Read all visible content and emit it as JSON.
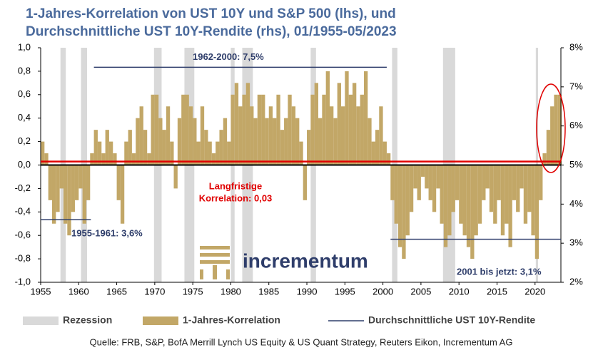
{
  "chart_data": {
    "type": "bar",
    "title": [
      "1-Jahres-Korrelation von UST 10Y und S&P 500 (lhs), und",
      "Durchschnittliche UST 10Y-Rendite (rhs), 01/1955-05/2023"
    ],
    "x": [
      1955,
      1955.5,
      1956,
      1956.5,
      1957,
      1957.5,
      1958,
      1958.5,
      1959,
      1959.5,
      1960,
      1960.5,
      1961,
      1961.5,
      1962,
      1962.5,
      1963,
      1963.5,
      1964,
      1964.5,
      1965,
      1965.5,
      1966,
      1966.5,
      1967,
      1967.5,
      1968,
      1968.5,
      1969,
      1969.5,
      1970,
      1970.5,
      1971,
      1971.5,
      1972,
      1972.5,
      1973,
      1973.5,
      1974,
      1974.5,
      1975,
      1975.5,
      1976,
      1976.5,
      1977,
      1977.5,
      1978,
      1978.5,
      1979,
      1979.5,
      1980,
      1980.5,
      1981,
      1981.5,
      1982,
      1982.5,
      1983,
      1983.5,
      1984,
      1984.5,
      1985,
      1985.5,
      1986,
      1986.5,
      1987,
      1987.5,
      1988,
      1988.5,
      1989,
      1989.5,
      1990,
      1990.5,
      1991,
      1991.5,
      1992,
      1992.5,
      1993,
      1993.5,
      1994,
      1994.5,
      1995,
      1995.5,
      1996,
      1996.5,
      1997,
      1997.5,
      1998,
      1998.5,
      1999,
      1999.5,
      2000,
      2000.5,
      2001,
      2001.5,
      2002,
      2002.5,
      2003,
      2003.5,
      2004,
      2004.5,
      2005,
      2005.5,
      2006,
      2006.5,
      2007,
      2007.5,
      2008,
      2008.5,
      2009,
      2009.5,
      2010,
      2010.5,
      2011,
      2011.5,
      2012,
      2012.5,
      2013,
      2013.5,
      2014,
      2014.5,
      2015,
      2015.5,
      2016,
      2016.5,
      2017,
      2017.5,
      2018,
      2018.5,
      2019,
      2019.5,
      2020,
      2020.5,
      2021,
      2021.5,
      2022,
      2022.5,
      2023
    ],
    "series": [
      {
        "name": "1-Jahres-Korrelation",
        "color": "#c2a767",
        "values": [
          0.2,
          0.1,
          -0.3,
          -0.5,
          -0.4,
          -0.2,
          -0.5,
          -0.6,
          -0.4,
          -0.3,
          -0.2,
          -0.5,
          -0.3,
          0.1,
          0.3,
          0.2,
          0.1,
          0.3,
          0.2,
          0.1,
          -0.3,
          -0.5,
          0.2,
          0.3,
          0.1,
          0.4,
          0.5,
          0.3,
          0.1,
          0.6,
          0.6,
          0.4,
          0.3,
          0.5,
          0.2,
          -0.2,
          0.4,
          0.6,
          0.6,
          0.5,
          0.4,
          0.2,
          0.5,
          0.3,
          0.2,
          0.1,
          0.2,
          0.3,
          0.4,
          0.2,
          0.6,
          0.7,
          0.5,
          0.6,
          0.7,
          0.5,
          0.4,
          0.6,
          0.6,
          0.4,
          0.5,
          0.4,
          0.6,
          0.3,
          0.4,
          0.6,
          0.5,
          0.4,
          0.2,
          -0.3,
          0.3,
          0.6,
          0.7,
          0.4,
          0.6,
          0.8,
          0.5,
          0.4,
          0.7,
          0.5,
          0.8,
          0.6,
          0.7,
          0.5,
          0.6,
          0.8,
          0.4,
          0.2,
          0.3,
          0.5,
          0.2,
          0.1,
          -0.3,
          -0.5,
          -0.7,
          -0.8,
          -0.6,
          -0.4,
          -0.2,
          -0.3,
          -0.1,
          -0.2,
          -0.3,
          -0.4,
          -0.2,
          -0.5,
          -0.7,
          -0.6,
          -0.4,
          -0.3,
          -0.5,
          -0.6,
          -0.7,
          -0.8,
          -0.6,
          -0.5,
          -0.3,
          -0.2,
          -0.4,
          -0.5,
          -0.3,
          -0.6,
          -0.5,
          -0.7,
          -0.3,
          -0.4,
          -0.2,
          -0.5,
          -0.4,
          -0.6,
          -0.8,
          -0.3,
          0.1,
          0.3,
          0.5,
          0.6,
          0.6
        ]
      }
    ],
    "recession": {
      "name": "Rezession",
      "color": "#d9d9d9",
      "periods": [
        [
          1957.6,
          1958.3
        ],
        [
          1960.3,
          1961.1
        ],
        [
          1969.9,
          1970.9
        ],
        [
          1973.9,
          1975.2
        ],
        [
          1980.0,
          1980.5
        ],
        [
          1981.5,
          1982.9
        ],
        [
          1990.5,
          1991.2
        ],
        [
          2001.2,
          2001.9
        ],
        [
          2007.9,
          2009.5
        ],
        [
          2020.1,
          2020.4
        ]
      ]
    },
    "average_yield": {
      "name": "Durchschnittliche UST 10Y-Rendite",
      "color": "#2f3e6b",
      "axis": "y2",
      "segments": [
        {
          "label": "1955-1961: 3,6%",
          "from": 1955,
          "to": 1961.6,
          "value": 3.6
        },
        {
          "label": "1962-2000: 7,5%",
          "from": 1962,
          "to": 2000.5,
          "value": 7.5
        },
        {
          "label": "2001 bis jetzt: 3,1%",
          "from": 2001,
          "to": 2023.4,
          "value": 3.1
        }
      ]
    },
    "long_term_correlation": {
      "value": 0.03,
      "color": "#e00000",
      "label": [
        "Langfristige",
        "Korrelation: 0,03"
      ]
    },
    "logo": "incrementum",
    "source": "Quelle: FRB, S&P, BofA Merrill Lynch US Equity & US Quant Strategy, Reuters Eikon, Incrementum AG",
    "xlim": [
      1955,
      2023.4
    ],
    "xticks": [
      1955,
      1960,
      1965,
      1970,
      1975,
      1980,
      1985,
      1990,
      1995,
      2000,
      2005,
      2010,
      2015,
      2020
    ],
    "ylim": [
      -1,
      1
    ],
    "yticks": [
      {
        "value": -1,
        "label": "-1,0"
      },
      {
        "value": -0.8,
        "label": "-0,8"
      },
      {
        "value": -0.6,
        "label": "-0,6"
      },
      {
        "value": -0.4,
        "label": "-0,4"
      },
      {
        "value": -0.2,
        "label": "-0,2"
      },
      {
        "value": 0,
        "label": "0,0"
      },
      {
        "value": 0.2,
        "label": "0,2"
      },
      {
        "value": 0.4,
        "label": "0,4"
      },
      {
        "value": 0.6,
        "label": "0,6"
      },
      {
        "value": 0.8,
        "label": "0,8"
      },
      {
        "value": 1,
        "label": "1,0"
      }
    ],
    "y2lim": [
      2,
      8
    ],
    "y2ticks": [
      {
        "value": 2,
        "label": "2%"
      },
      {
        "value": 3,
        "label": "3%"
      },
      {
        "value": 4,
        "label": "4%"
      },
      {
        "value": 5,
        "label": "5%"
      },
      {
        "value": 6,
        "label": "6%"
      },
      {
        "value": 7,
        "label": "7%"
      },
      {
        "value": 8,
        "label": "8%"
      }
    ]
  }
}
